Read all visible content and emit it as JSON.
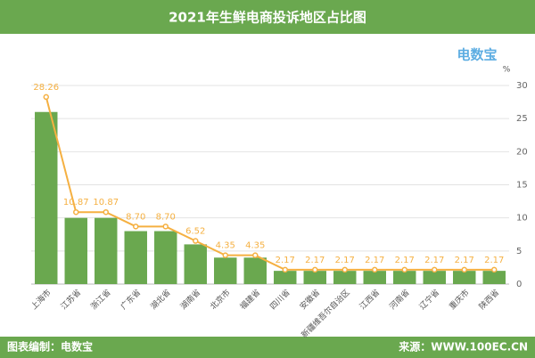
{
  "header": {
    "title": "2021年生鲜电商投诉地区占比图",
    "logo": "电数宝"
  },
  "chart_data": {
    "type": "bar-line",
    "ylabel": "%",
    "categories": [
      "上海市",
      "江苏省",
      "浙江省",
      "广东省",
      "湖北省",
      "湖南省",
      "北京市",
      "福建省",
      "四川省",
      "安徽省",
      "新疆维吾尔自治区",
      "江西省",
      "河南省",
      "辽宁省",
      "重庆市",
      "陕西省"
    ],
    "series": [
      {
        "type": "bar",
        "color": "#6aa84f",
        "values": [
          26,
          10,
          10,
          8,
          8,
          6,
          4,
          4,
          2,
          2,
          2,
          2,
          2,
          2,
          2,
          2
        ]
      },
      {
        "type": "line",
        "color": "#f5b041",
        "values": [
          28.26,
          10.87,
          10.87,
          8.7,
          8.7,
          6.52,
          4.35,
          4.35,
          2.17,
          2.17,
          2.17,
          2.17,
          2.17,
          2.17,
          2.17,
          2.17
        ],
        "value_labels": [
          "28.26",
          "10.87",
          "10.87",
          "8.70",
          "8.70",
          "6.52",
          "4.35",
          "4.35",
          "2.17",
          "2.17",
          "2.17",
          "2.17",
          "2.17",
          "2.17",
          "2.17",
          "2.17"
        ]
      }
    ],
    "ylim": [
      0,
      30
    ],
    "yticks": [
      0,
      5,
      10,
      15,
      20,
      25,
      30
    ],
    "grid": true
  },
  "footer": {
    "left": "图表编制：电数宝",
    "right": "来源：WWW.100EC.CN"
  }
}
